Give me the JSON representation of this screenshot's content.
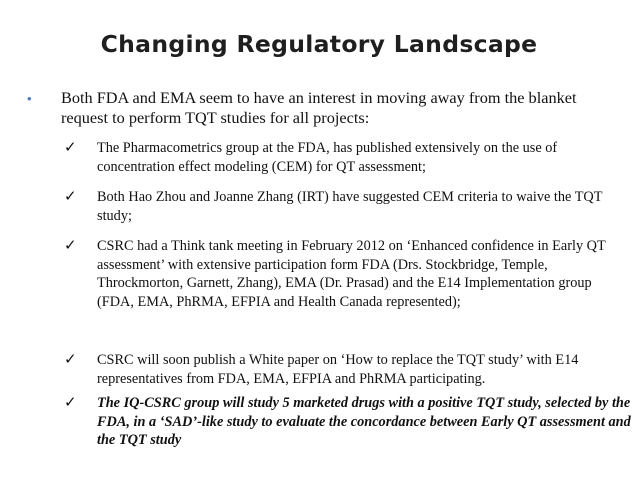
{
  "title": "Changing Regulatory Landscape",
  "bullet": {
    "icon": "bullet-dot-icon",
    "glyph": "•",
    "color": "#4a7ab8",
    "text": "Both FDA and EMA seem to have an interest in moving away from the blanket request to perform TQT studies for all projects:"
  },
  "check_glyph": "✓",
  "sub_items": [
    {
      "text": "The Pharmacometrics group at the FDA, has published extensively on the use of concentration effect modeling (CEM) for QT assessment;"
    },
    {
      "text": "Both Hao Zhou and Joanne Zhang (IRT) have suggested CEM criteria to waive the TQT study;"
    },
    {
      "text": "CSRC had a Think tank meeting in February 2012 on ‘Enhanced confidence in Early QT assessment’ with extensive participation form FDA (Drs. Stockbridge, Temple, Throckmorton, Garnett, Zhang), EMA (Dr. Prasad) and the E14 Implementation group (FDA, EMA, PhRMA, EFPIA and Health Canada represented);"
    },
    {
      "text": "CSRC will soon publish a White paper on ‘How to replace the TQT study’ with E14 representatives from FDA, EMA, EFPIA and PhRMA participating."
    },
    {
      "text": "The IQ-CSRC group will study 5 marketed drugs with a positive TQT study, selected by the FDA, in a ‘SAD’-like study to evaluate the concordance between Early QT assessment and the TQT study",
      "emphasis": "bold-italic"
    }
  ]
}
